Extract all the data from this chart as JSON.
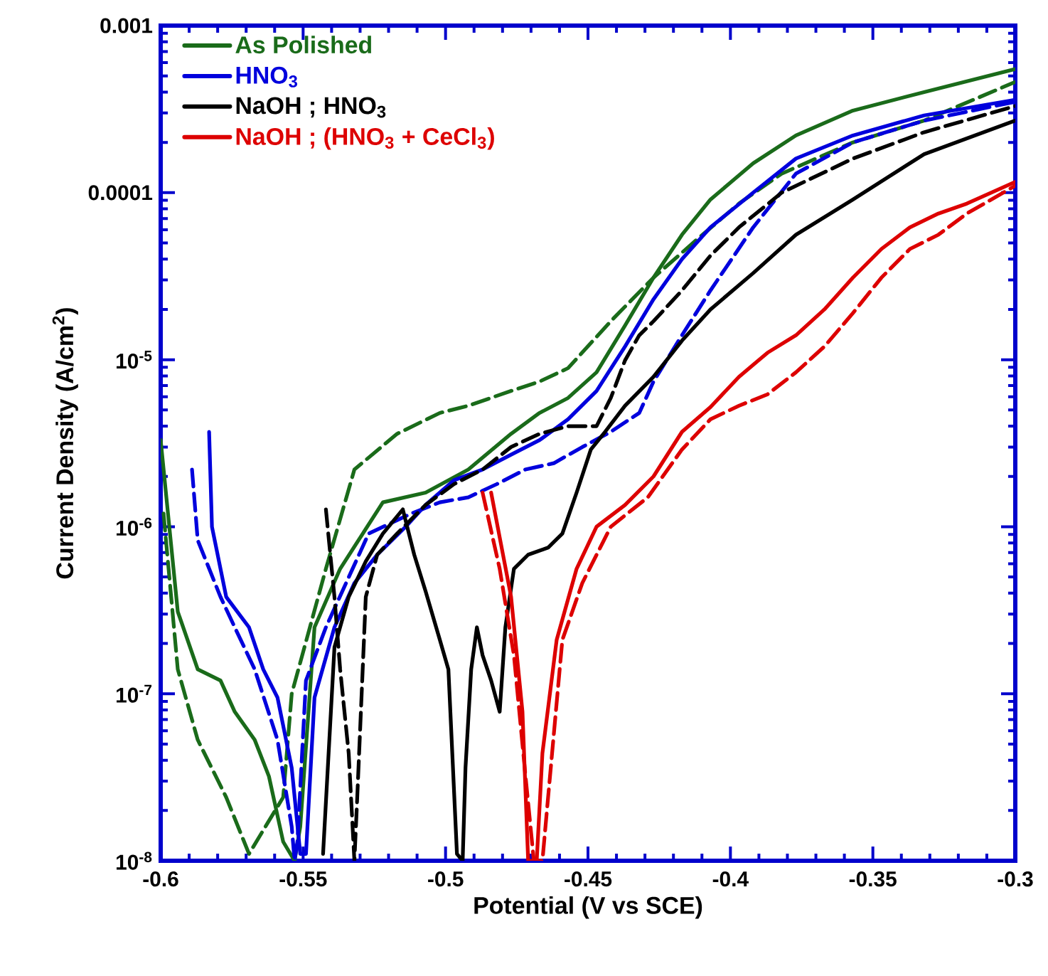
{
  "chart_data": {
    "type": "line",
    "xlabel": "Potential (V vs SCE)",
    "ylabel": "Current Density (A/cm$^{2}$)",
    "log": "y",
    "legend": "top left",
    "xlim": [
      -0.6,
      -0.3
    ],
    "xticks": [
      -0.6,
      -0.55,
      -0.5,
      -0.45,
      -0.4,
      -0.35,
      -0.3
    ],
    "ylim": [
      1e-08,
      0.001
    ],
    "yticks": [
      {
        "value": 1e-08,
        "label": "10$^{-8}$"
      },
      {
        "value": 1e-07,
        "label": "10$^{-7}$"
      },
      {
        "value": 1e-06,
        "label": "10$^{-6}$"
      },
      {
        "value": 1e-05,
        "label": "10$^{-5}$"
      },
      0.0001,
      0.001
    ],
    "series": [
      {
        "name": "As Polished",
        "color": "#1a6b1a",
        "line_style": "solid",
        "x": [
          -0.6,
          -0.594,
          -0.587,
          -0.579,
          -0.574,
          -0.567,
          -0.562,
          -0.557,
          -0.553,
          -0.551,
          -0.546,
          -0.537,
          -0.522,
          -0.507,
          -0.492,
          -0.477,
          -0.467,
          -0.457,
          -0.447,
          -0.437,
          -0.427,
          -0.417,
          -0.407,
          -0.392,
          -0.377,
          -0.357,
          -0.332,
          -0.3
        ],
        "values": [
          3.3e-06,
          3.1e-07,
          1.4e-07,
          1.2e-07,
          7.8e-08,
          5.3e-08,
          3.2e-08,
          1.3e-08,
          1e-08,
          1.6e-08,
          2.5e-07,
          5.6e-07,
          1.4e-06,
          1.6e-06,
          2.2e-06,
          3.6e-06,
          4.8e-06,
          5.9e-06,
          8.4e-06,
          1.6e-05,
          3.1e-05,
          5.6e-05,
          9.1e-05,
          0.00015,
          0.00022,
          0.00031,
          0.0004,
          0.00055
        ]
      },
      {
        "color": "#1a6b1a",
        "line_style": "dashed",
        "x": [
          -0.599,
          -0.594,
          -0.587,
          -0.577,
          -0.569,
          -0.557,
          -0.554,
          -0.542,
          -0.532,
          -0.517,
          -0.502,
          -0.492,
          -0.477,
          -0.467,
          -0.457,
          -0.442,
          -0.427,
          -0.412,
          -0.397,
          -0.382,
          -0.357,
          -0.332,
          -0.3
        ],
        "values": [
          1.2e-06,
          1.4e-07,
          5.3e-08,
          2.4e-08,
          1.1e-08,
          2.4e-08,
          1e-07,
          5.6e-07,
          2.2e-06,
          3.6e-06,
          4.8e-06,
          5.3e-06,
          6.5e-06,
          7.4e-06,
          8.9e-06,
          1.7e-05,
          3.1e-05,
          5.2e-05,
          8.6e-05,
          0.00013,
          0.0002,
          0.00027,
          0.00046
        ]
      },
      {
        "name": "HNO$_{3}$",
        "color": "#0000dd",
        "line_style": "solid",
        "x": [
          -0.583,
          -0.582,
          -0.577,
          -0.569,
          -0.564,
          -0.559,
          -0.554,
          -0.551,
          -0.549,
          -0.546,
          -0.539,
          -0.532,
          -0.524,
          -0.514,
          -0.507,
          -0.497,
          -0.487,
          -0.477,
          -0.467,
          -0.457,
          -0.447,
          -0.437,
          -0.427,
          -0.417,
          -0.407,
          -0.392,
          -0.377,
          -0.357,
          -0.332,
          -0.3
        ],
        "values": [
          3.7e-06,
          1e-06,
          3.8e-07,
          2.5e-07,
          1.4e-07,
          9.5e-08,
          3.6e-08,
          1.1e-08,
          1.1e-08,
          9.5e-08,
          2.5e-07,
          4.6e-07,
          6.8e-07,
          1e-06,
          1.35e-06,
          1.9e-06,
          2.2e-06,
          2.7e-06,
          3.3e-06,
          4.4e-06,
          6.5e-06,
          1.2e-05,
          2.3e-05,
          4e-05,
          6.2e-05,
          0.0001,
          0.00016,
          0.00022,
          0.00029,
          0.00036
        ]
      },
      {
        "color": "#0000dd",
        "line_style": "dashed",
        "x": [
          -0.589,
          -0.587,
          -0.579,
          -0.574,
          -0.567,
          -0.559,
          -0.554,
          -0.553,
          -0.552,
          -0.549,
          -0.542,
          -0.527,
          -0.512,
          -0.502,
          -0.492,
          -0.482,
          -0.472,
          -0.462,
          -0.452,
          -0.442,
          -0.432,
          -0.427,
          -0.417,
          -0.407,
          -0.392,
          -0.377,
          -0.357,
          -0.332,
          -0.3
        ],
        "values": [
          2.2e-06,
          8.3e-07,
          3.8e-07,
          2.5e-07,
          1.4e-07,
          5.3e-08,
          1.6e-08,
          1e-08,
          1.3e-08,
          1.2e-07,
          2.5e-07,
          9.1e-07,
          1.2e-06,
          1.4e-06,
          1.5e-06,
          1.8e-06,
          2.2e-06,
          2.4e-06,
          3e-06,
          3.7e-06,
          4.8e-06,
          7.4e-06,
          1.4e-05,
          2.6e-05,
          6.2e-05,
          0.00013,
          0.0002,
          0.00027,
          0.00035
        ]
      },
      {
        "name": "NaOH ; HNO$_{3}$",
        "color": "#000000",
        "line_style": "solid",
        "x": [
          -0.543,
          -0.539,
          -0.534,
          -0.528,
          -0.522,
          -0.515,
          -0.511,
          -0.507,
          -0.502,
          -0.499,
          -0.496,
          -0.494,
          -0.493,
          -0.491,
          -0.489,
          -0.487,
          -0.484,
          -0.481,
          -0.479,
          -0.476,
          -0.471,
          -0.464,
          -0.459,
          -0.454,
          -0.449,
          -0.444,
          -0.437,
          -0.427,
          -0.417,
          -0.407,
          -0.392,
          -0.377,
          -0.357,
          -0.332,
          -0.3
        ],
        "values": [
          1.1e-08,
          1.9e-07,
          3.8e-07,
          6.2e-07,
          9.1e-07,
          1.27e-06,
          6.8e-07,
          4.1e-07,
          2.1e-07,
          1.4e-07,
          1.1e-08,
          1e-08,
          3.6e-08,
          1.4e-07,
          2.5e-07,
          1.7e-07,
          1.2e-07,
          7.8e-08,
          2.5e-07,
          5.6e-07,
          6.8e-07,
          7.5e-07,
          9.1e-07,
          1.6e-06,
          2.9e-06,
          3.7e-06,
          5.3e-06,
          7.9e-06,
          1.3e-05,
          2e-05,
          3.3e-05,
          5.6e-05,
          9.1e-05,
          0.00017,
          0.00027
        ]
      },
      {
        "color": "#000000",
        "line_style": "dashed",
        "x": [
          -0.542,
          -0.539,
          -0.537,
          -0.534,
          -0.532,
          -0.531,
          -0.528,
          -0.524,
          -0.517,
          -0.507,
          -0.497,
          -0.487,
          -0.477,
          -0.467,
          -0.457,
          -0.447,
          -0.442,
          -0.437,
          -0.432,
          -0.427,
          -0.417,
          -0.407,
          -0.397,
          -0.382,
          -0.357,
          -0.332,
          -0.3
        ],
        "values": [
          1.27e-06,
          3.8e-07,
          1.4e-07,
          4.4e-08,
          1e-08,
          2.4e-08,
          3.8e-07,
          6.8e-07,
          9.1e-07,
          1.35e-06,
          1.8e-06,
          2.2e-06,
          3e-06,
          3.6e-06,
          4e-06,
          4e-06,
          5.9e-06,
          9.9e-06,
          1.4e-05,
          1.7e-05,
          2.6e-05,
          4.2e-05,
          6.2e-05,
          0.0001,
          0.00016,
          0.00023,
          0.00033
        ]
      },
      {
        "name": "NaOH ; (HNO$_{3}$ + CeCl$_{3}$)",
        "color": "#dd0000",
        "line_style": "solid",
        "x": [
          -0.484,
          -0.477,
          -0.473,
          -0.471,
          -0.468,
          -0.466,
          -0.461,
          -0.454,
          -0.447,
          -0.437,
          -0.427,
          -0.417,
          -0.407,
          -0.397,
          -0.387,
          -0.377,
          -0.367,
          -0.357,
          -0.347,
          -0.337,
          -0.327,
          -0.317,
          -0.3
        ],
        "values": [
          1.6e-06,
          3.8e-07,
          7.8e-08,
          1e-08,
          1e-08,
          4.4e-08,
          2.1e-07,
          5.6e-07,
          1e-06,
          1.35e-06,
          2e-06,
          3.7e-06,
          5.2e-06,
          7.9e-06,
          1.1e-05,
          1.4e-05,
          2e-05,
          3.1e-05,
          4.6e-05,
          6.2e-05,
          7.5e-05,
          8.6e-05,
          0.000116
        ]
      },
      {
        "color": "#dd0000",
        "line_style": "dashed",
        "x": [
          -0.487,
          -0.481,
          -0.476,
          -0.472,
          -0.469,
          -0.466,
          -0.464,
          -0.459,
          -0.452,
          -0.442,
          -0.429,
          -0.417,
          -0.407,
          -0.397,
          -0.387,
          -0.377,
          -0.367,
          -0.357,
          -0.347,
          -0.337,
          -0.327,
          -0.317,
          -0.3
        ],
        "values": [
          1.6e-06,
          5.6e-07,
          1.7e-07,
          3.3e-08,
          1e-08,
          1e-08,
          2.4e-08,
          2.1e-07,
          4.6e-07,
          1e-06,
          1.5e-06,
          2.9e-06,
          4.4e-06,
          5.3e-06,
          6.2e-06,
          8.4e-06,
          1.2e-05,
          1.9e-05,
          3.1e-05,
          4.6e-05,
          5.6e-05,
          7.5e-05,
          0.00011
        ]
      }
    ]
  }
}
